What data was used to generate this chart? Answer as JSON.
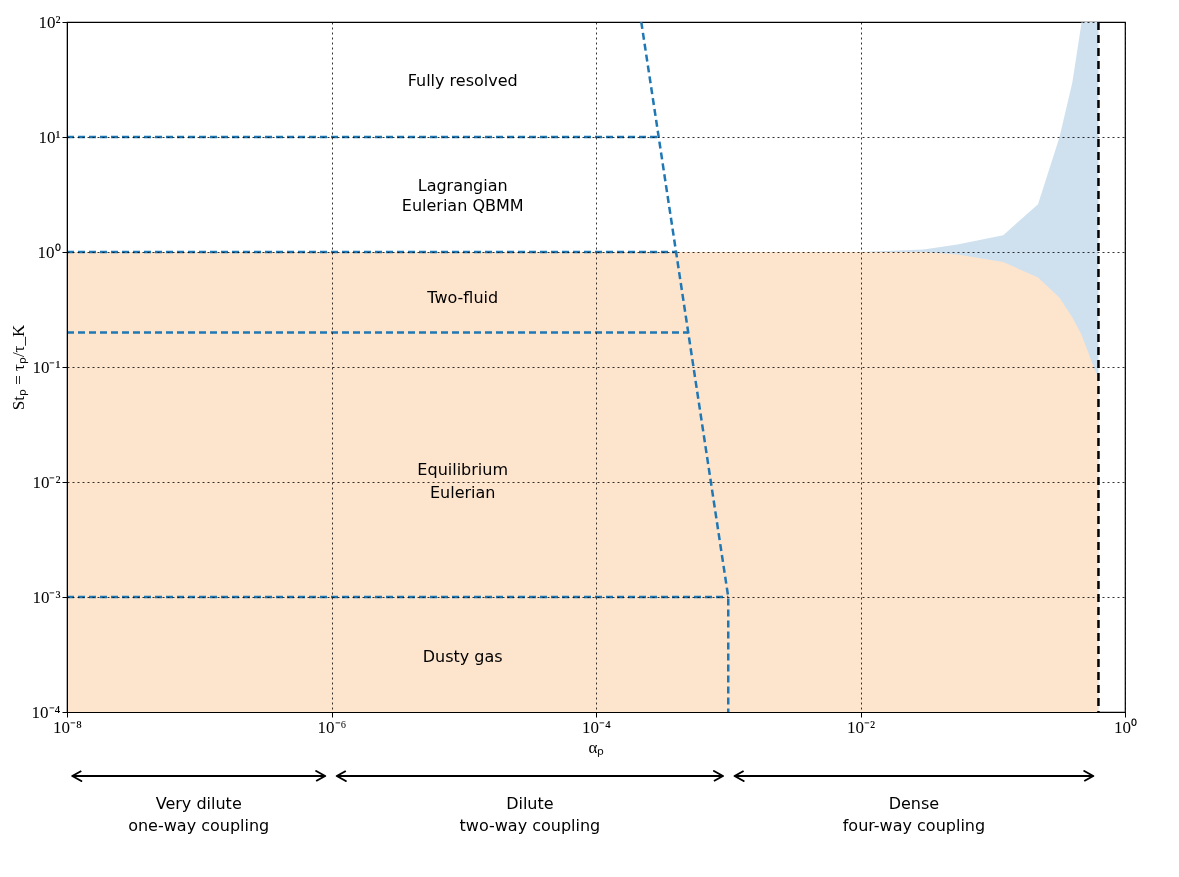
{
  "chart_data": {
    "type": "line",
    "xlabel": "αₚ",
    "ylabel": "Stₚ = τₚ/τ_K",
    "log": "xy",
    "grid": true,
    "line_style": "dashed",
    "xlim": [
      1e-08,
      1
    ],
    "ylim": [
      0.0001,
      100
    ],
    "xticks": [
      {
        "value": 1e-08,
        "label": "10⁻⁸"
      },
      {
        "value": 1e-06,
        "label": "10⁻⁶"
      },
      {
        "value": 0.0001,
        "label": "10⁻⁴"
      },
      {
        "value": 0.01,
        "label": "10⁻²"
      },
      {
        "value": 1,
        "label": "10⁰"
      }
    ],
    "yticks": [
      {
        "value": 0.0001,
        "label": "10⁻⁴"
      },
      {
        "value": 0.001,
        "label": "10⁻³"
      },
      {
        "value": 0.01,
        "label": "10⁻²"
      },
      {
        "value": 0.1,
        "label": "10⁻¹"
      },
      {
        "value": 1,
        "label": "10⁰"
      },
      {
        "value": 10,
        "label": "10¹"
      },
      {
        "value": 100,
        "label": "10²"
      }
    ],
    "series": [
      {
        "type": "area",
        "color": "#cfe1ef",
        "x": [
          0.01,
          0.03,
          0.054,
          0.12,
          0.22,
          0.32,
          0.4,
          0.47,
          0.58,
          0.63
        ],
        "values": [
          1,
          1.05,
          1.16,
          1.4,
          2.6,
          10,
          30,
          100,
          100,
          100
        ]
      },
      {
        "type": "area",
        "color": "#fde4cd",
        "x": [
          1e-08,
          0.01,
          0.03,
          0.054,
          0.12,
          0.22,
          0.32,
          0.4,
          0.47,
          0.58,
          0.63
        ],
        "values": [
          1,
          1,
          1,
          0.95,
          0.82,
          0.6,
          0.4,
          0.27,
          0.19,
          0.1,
          0.08
        ]
      },
      {
        "color": "#1f77b4",
        "x": [
          1e-08,
          0.000297
        ],
        "values": [
          10,
          10
        ]
      },
      {
        "color": "#1f77b4",
        "x": [
          1e-08,
          0.0004
        ],
        "values": [
          1,
          1
        ]
      },
      {
        "color": "#1f77b4",
        "x": [
          1e-08,
          0.0005
        ],
        "values": [
          0.2,
          0.2
        ]
      },
      {
        "color": "#1f77b4",
        "x": [
          1e-08,
          0.001
        ],
        "values": [
          0.001,
          0.001
        ]
      },
      {
        "color": "#1f77b4",
        "x": [
          0.00022,
          0.001,
          0.001
        ],
        "values": [
          100,
          0.001,
          0.0001
        ]
      }
    ],
    "ref_lines": [
      {
        "axis": "x",
        "value": 0.63,
        "color": "#000000",
        "line_style": "dashed"
      }
    ],
    "annotations": [
      "Fully resolved",
      "Lagrangian",
      "Eulerian QBMM",
      "Two-fluid",
      "Equilibrium",
      "Eulerian",
      "Dusty gas",
      "Very dilute\none-way coupling",
      "Dilute\ntwo-way coupling",
      "Dense\nfour-way coupling"
    ]
  }
}
